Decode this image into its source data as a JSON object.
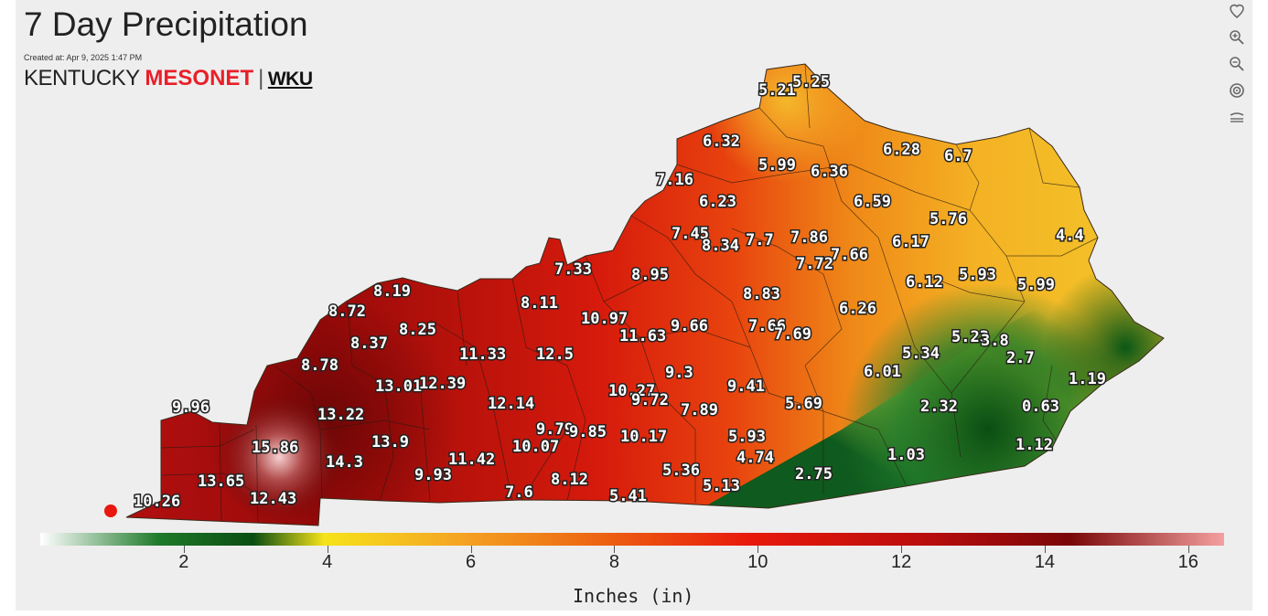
{
  "title": "7 Day Precipitation",
  "created": "Created at: Apr 9, 2025 1:47 PM",
  "logo": {
    "part1": "KENTUCKY ",
    "part2": "MESONET",
    "sep": "|",
    "part3": "WKU"
  },
  "toolbar": [
    {
      "name": "home-icon"
    },
    {
      "name": "zoom-in-icon"
    },
    {
      "name": "zoom-out-icon"
    },
    {
      "name": "layers-icon"
    },
    {
      "name": "contour-icon"
    }
  ],
  "map_values": [
    "5.21",
    "5.25",
    "6.32",
    "5.99",
    "6.36",
    "6.28",
    "6.7",
    "7.16",
    "6.23",
    "6.59",
    "5.76",
    "4.4",
    "7.45",
    "8.34",
    "7.7",
    "7.86",
    "7.66",
    "6.17",
    "7.72",
    "7.33",
    "8.95",
    "6.12",
    "5.93",
    "5.99",
    "8.19",
    "8.11",
    "8.83",
    "8.72",
    "8.25",
    "10.97",
    "11.63",
    "9.66",
    "7.66",
    "7.69",
    "6.26",
    "8.37",
    "11.33",
    "12.5",
    "5.23",
    "3.8",
    "5.34",
    "2.7",
    "8.78",
    "13.01",
    "12.39",
    "9.3",
    "9.41",
    "6.01",
    "1.19",
    "10.27",
    "9.72",
    "7.89",
    "9.96",
    "13.22",
    "12.14",
    "5.69",
    "2.32",
    "0.63",
    "9.79",
    "9.85",
    "10.17",
    "15.86",
    "13.9",
    "10.07",
    "5.93",
    "4.74",
    "14.3",
    "11.42",
    "1.03",
    "1.12",
    "9.93",
    "8.12",
    "5.36",
    "13.65",
    "12.43",
    "2.75",
    "10.26",
    "7.6",
    "5.41",
    "5.13"
  ],
  "legend": {
    "min": 0,
    "max": 16.5,
    "ticks": [
      "2",
      "4",
      "6",
      "8",
      "10",
      "12",
      "14",
      "16"
    ],
    "units": "Inches (in)",
    "colors": [
      "#ffffff",
      "#1f7a2a",
      "#0a4d12",
      "#f6e31a",
      "#f5a623",
      "#ee7014",
      "#e8190c",
      "#b80d0d",
      "#7a0707",
      "#f4a0a0"
    ]
  }
}
